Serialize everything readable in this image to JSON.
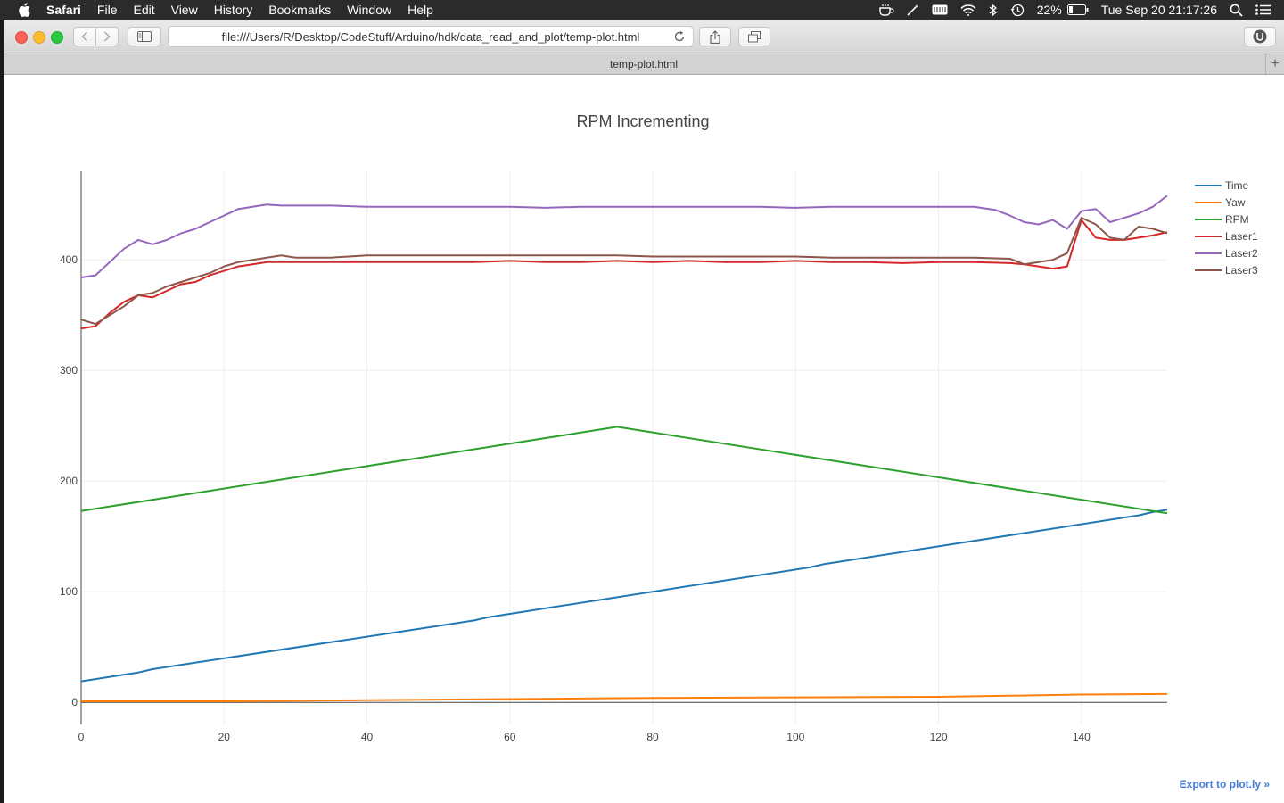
{
  "menubar": {
    "app": "Safari",
    "items": [
      "File",
      "Edit",
      "View",
      "History",
      "Bookmarks",
      "Window",
      "Help"
    ],
    "battery": "22%",
    "datetime": "Tue Sep 20  21:17:26"
  },
  "browser": {
    "url": "file:///Users/R/Desktop/CodeStuff/Arduino/hdk/data_read_and_plot/temp-plot.html",
    "tab_title": "temp-plot.html",
    "new_tab": "+"
  },
  "export_link": "Export to plot.ly »",
  "colors": {
    "time": "#1f77b4",
    "yaw": "#ff7f0e",
    "rpm": "#2ca02c",
    "laser1": "#d62728",
    "laser2": "#9467bd",
    "laser3": "#8c564b"
  },
  "chart_data": {
    "type": "line",
    "title": "RPM Incrementing",
    "xlabel": "",
    "ylabel": "",
    "xlim": [
      0,
      152
    ],
    "ylim": [
      -20,
      480
    ],
    "xticks": [
      0,
      20,
      40,
      60,
      80,
      100,
      120,
      140
    ],
    "yticks": [
      0,
      100,
      200,
      300,
      400
    ],
    "grid": true,
    "legend": "top-right",
    "series": [
      {
        "name": "Time",
        "color": "#1f77b4",
        "x": [
          0,
          8,
          10,
          55,
          57,
          102,
          104,
          148,
          150,
          152
        ],
        "y": [
          19,
          27,
          30,
          74,
          77,
          122,
          125,
          169,
          172,
          174
        ]
      },
      {
        "name": "Yaw",
        "color": "#ff7f0e",
        "x": [
          0,
          20,
          40,
          60,
          80,
          100,
          120,
          130,
          140,
          152
        ],
        "y": [
          1,
          1,
          2,
          3,
          4,
          4.5,
          5,
          6,
          7,
          7.5
        ]
      },
      {
        "name": "RPM",
        "color": "#2ca02c",
        "x": [
          0,
          75,
          152
        ],
        "y": [
          173,
          249,
          171
        ]
      },
      {
        "name": "Laser1",
        "color": "#d62728",
        "x": [
          0,
          2,
          4,
          6,
          8,
          10,
          12,
          14,
          16,
          18,
          20,
          22,
          24,
          26,
          28,
          30,
          35,
          40,
          45,
          50,
          55,
          60,
          65,
          70,
          75,
          80,
          85,
          90,
          95,
          100,
          105,
          110,
          115,
          120,
          125,
          130,
          132,
          134,
          136,
          138,
          140,
          142,
          144,
          146,
          148,
          150,
          152
        ],
        "y": [
          338,
          340,
          352,
          362,
          368,
          366,
          372,
          378,
          380,
          386,
          390,
          394,
          396,
          398,
          398,
          398,
          398,
          398,
          398,
          398,
          398,
          399,
          398,
          398,
          399,
          398,
          399,
          398,
          398,
          399,
          398,
          398,
          397,
          398,
          398,
          397,
          396,
          394,
          392,
          394,
          436,
          420,
          418,
          418,
          420,
          422,
          425
        ]
      },
      {
        "name": "Laser2",
        "color": "#9467bd",
        "x": [
          0,
          2,
          4,
          6,
          8,
          10,
          12,
          14,
          16,
          18,
          20,
          22,
          24,
          26,
          28,
          30,
          35,
          40,
          45,
          50,
          55,
          60,
          65,
          70,
          75,
          80,
          85,
          90,
          95,
          100,
          105,
          110,
          115,
          120,
          125,
          128,
          130,
          132,
          134,
          136,
          138,
          140,
          142,
          144,
          146,
          148,
          150,
          152
        ],
        "y": [
          384,
          386,
          398,
          410,
          418,
          414,
          418,
          424,
          428,
          434,
          440,
          446,
          448,
          450,
          449,
          449,
          449,
          448,
          448,
          448,
          448,
          448,
          447,
          448,
          448,
          448,
          448,
          448,
          448,
          447,
          448,
          448,
          448,
          448,
          448,
          445,
          440,
          434,
          432,
          436,
          428,
          444,
          446,
          434,
          438,
          442,
          448,
          458
        ]
      },
      {
        "name": "Laser3",
        "color": "#8c564b",
        "x": [
          0,
          2,
          4,
          6,
          8,
          10,
          12,
          14,
          16,
          18,
          20,
          22,
          24,
          26,
          28,
          30,
          35,
          40,
          45,
          50,
          55,
          60,
          65,
          70,
          75,
          80,
          85,
          90,
          95,
          100,
          105,
          110,
          115,
          120,
          125,
          130,
          132,
          134,
          136,
          138,
          140,
          142,
          144,
          146,
          148,
          150,
          152
        ],
        "y": [
          346,
          342,
          350,
          358,
          368,
          370,
          376,
          380,
          384,
          388,
          394,
          398,
          400,
          402,
          404,
          402,
          402,
          404,
          404,
          404,
          404,
          404,
          404,
          404,
          404,
          403,
          403,
          403,
          403,
          403,
          402,
          402,
          402,
          402,
          402,
          401,
          396,
          398,
          400,
          406,
          438,
          432,
          420,
          418,
          430,
          428,
          424
        ]
      }
    ]
  }
}
